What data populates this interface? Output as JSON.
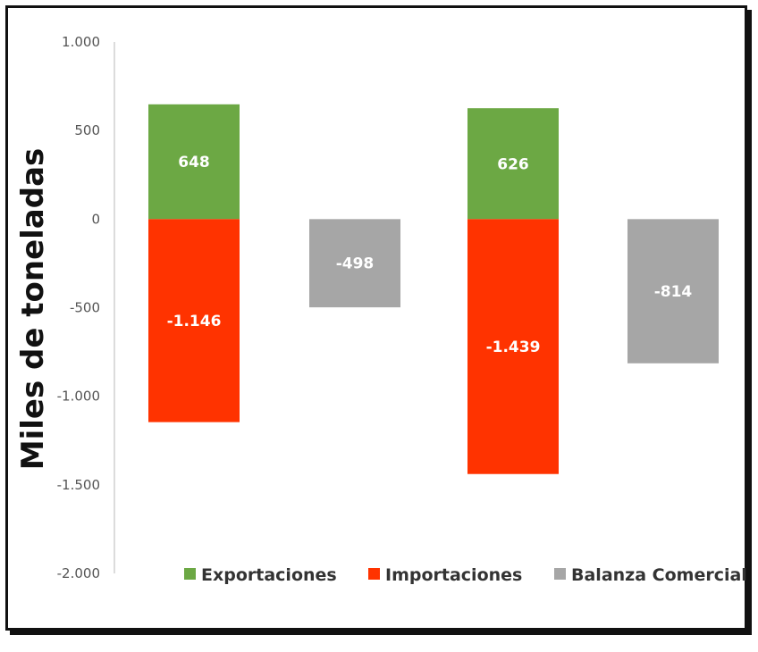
{
  "chart_data": {
    "type": "bar",
    "title": "",
    "ylabel": "Miles de toneladas",
    "xlabel": "",
    "ylim": [
      -2000,
      1000
    ],
    "yticks": [
      1000,
      500,
      0,
      -500,
      -1000,
      -1500,
      -2000
    ],
    "ytick_labels": [
      "1.000",
      "500",
      "0",
      "-500",
      "-1.000",
      "-1.500",
      "-2.000"
    ],
    "grid": false,
    "legend_position": "bottom",
    "groups": [
      {
        "bars": [
          {
            "series": "Exportaciones",
            "value": 648,
            "label": "648"
          },
          {
            "series": "Importaciones",
            "value": -1146,
            "label": "-1.146"
          }
        ]
      },
      {
        "bars": [
          {
            "series": "Balanza Comercial",
            "value": -498,
            "label": "-498"
          }
        ]
      },
      {
        "bars": [
          {
            "series": "Exportaciones",
            "value": 626,
            "label": "626"
          },
          {
            "series": "Importaciones",
            "value": -1439,
            "label": "-1.439"
          }
        ]
      },
      {
        "bars": [
          {
            "series": "Balanza Comercial",
            "value": -814,
            "label": "-814"
          }
        ]
      }
    ],
    "series": [
      {
        "name": "Exportaciones",
        "color": "#6ca844"
      },
      {
        "name": "Importaciones",
        "color": "#ff3300"
      },
      {
        "name": "Balanza Comercial",
        "color": "#a6a6a6"
      }
    ]
  }
}
